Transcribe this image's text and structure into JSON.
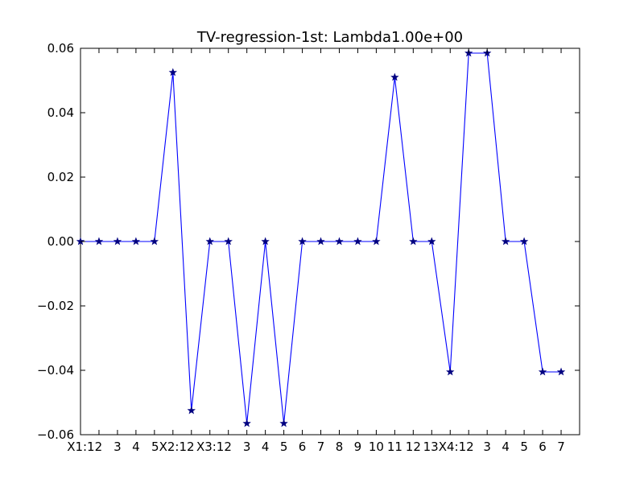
{
  "chart_data": {
    "type": "line",
    "title": "TV-regression-1st: Lambda1.00e+00",
    "xlabel": "",
    "ylabel": "",
    "categories": [
      "X1:1",
      "2",
      "3",
      "4",
      "5",
      "X2:1",
      "2",
      "X3:1",
      "2",
      "3",
      "4",
      "5",
      "6",
      "7",
      "8",
      "9",
      "10",
      "11",
      "12",
      "13",
      "X4:1",
      "2",
      "3",
      "4",
      "5",
      "6",
      "7"
    ],
    "x_tick_labels": [
      "X1:1",
      "2",
      "3",
      "4",
      "5",
      "X2:1",
      "2",
      "X3:1",
      "2",
      "3",
      "4",
      "5",
      "6",
      "7",
      "8",
      "9",
      "10",
      "11",
      "12",
      "13",
      "X4:1",
      "2",
      "3",
      "4",
      "5",
      "6",
      "7"
    ],
    "x_tick_text": [
      "X1:12",
      "3",
      "4",
      "5X2:12",
      "X3:12",
      "3",
      "4",
      "5",
      "6",
      "7",
      "8",
      "9",
      "10",
      "11",
      "12",
      "13X4:12",
      "3",
      "4",
      "5",
      "6",
      "7"
    ],
    "xlim": [
      0,
      27
    ],
    "ylim": [
      -0.06,
      0.06
    ],
    "y_ticks": [
      0.06,
      0.04,
      0.02,
      0.0,
      -0.02,
      -0.04,
      -0.06
    ],
    "y_tick_labels": [
      "0.06",
      "0.04",
      "0.02",
      "0.00",
      "−0.02",
      "−0.04",
      "−0.06"
    ],
    "grid": false,
    "series": [
      {
        "marker": "star",
        "line_color": "#0000ff",
        "marker_color": "#000080",
        "values": [
          0,
          0,
          0,
          0,
          0,
          0.0525,
          -0.0525,
          0,
          0,
          -0.0565,
          0,
          -0.0565,
          0,
          0,
          0,
          0,
          0,
          0.051,
          0,
          0,
          -0.0405,
          0.0585,
          0.0585,
          0,
          0,
          -0.0405,
          -0.0405
        ]
      }
    ]
  }
}
